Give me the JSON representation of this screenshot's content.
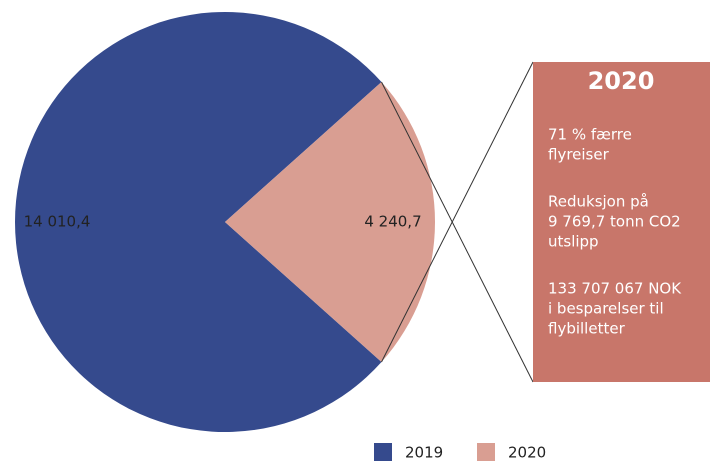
{
  "chart_data": {
    "type": "pie",
    "categories": [
      "2019",
      "2020"
    ],
    "values": [
      14010.4,
      4240.7
    ],
    "value_labels": [
      "14 010,4",
      "4 240,7"
    ],
    "colors": [
      "#354a8d",
      "#d99e92"
    ],
    "callout": {
      "title": "2020",
      "color": "#c8766a",
      "paragraphs": [
        [
          "71 % færre",
          "flyreiser"
        ],
        [
          "Reduksjon på",
          "9 769,7 tonn CO2",
          "utslipp"
        ],
        [
          "133 707 067 NOK",
          "i besparelser til",
          "flybilletter"
        ]
      ]
    },
    "legend": "bottom"
  }
}
